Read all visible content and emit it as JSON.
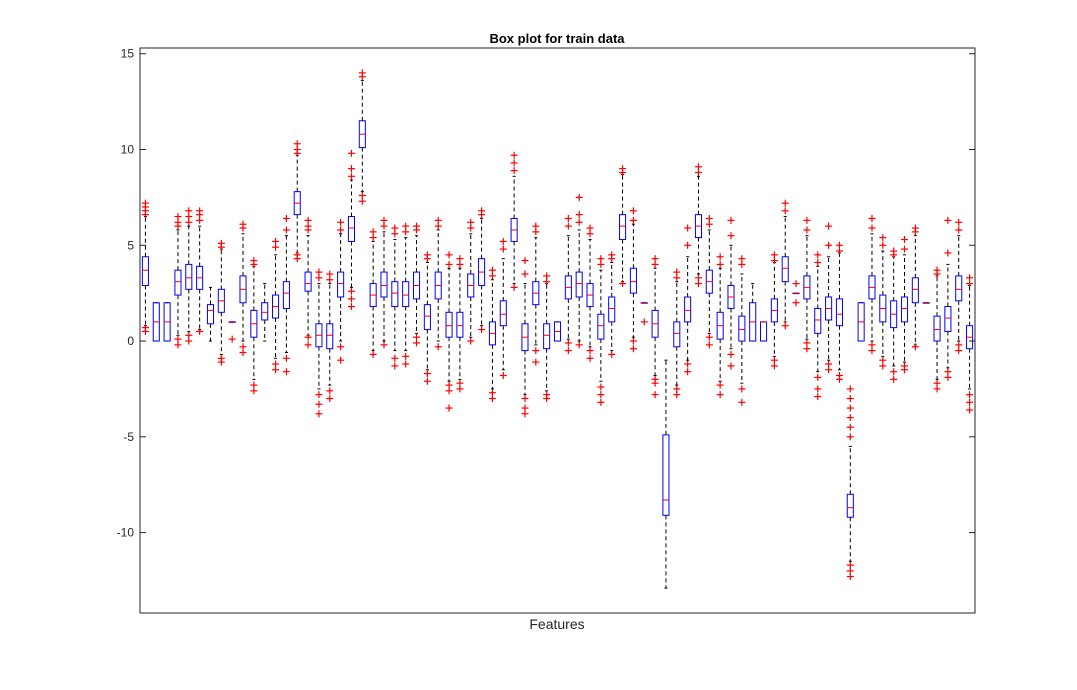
{
  "chart_data": {
    "type": "box",
    "title": "Box plot for train data",
    "xlabel": "Features",
    "ylabel": "",
    "ylim": [
      -14.2,
      15.3
    ],
    "yticks": [
      -10,
      -5,
      0,
      5,
      10,
      15
    ],
    "ytick_labels": [
      "-10",
      "-5",
      "0",
      "5",
      "10",
      "15"
    ],
    "xticks_visible": false,
    "grid": false,
    "colors": {
      "box": "#0000ff",
      "median": "#ff0000",
      "outlier": "#ff0000",
      "whisker": "#000000"
    },
    "boxes": [
      {
        "q1": 2.9,
        "median": 3.7,
        "q3": 4.4,
        "lo": 0.8,
        "hi": 6.5,
        "out": [
          7.2,
          7.0,
          6.8,
          6.6,
          0.7,
          0.5
        ]
      },
      {
        "q1": 0.0,
        "median": 1.0,
        "q3": 2.0,
        "lo": 0.0,
        "hi": 2.0,
        "out": []
      },
      {
        "q1": 0.0,
        "median": 1.0,
        "q3": 2.0,
        "lo": 0.0,
        "hi": 2.0,
        "out": []
      },
      {
        "q1": 2.4,
        "median": 3.1,
        "q3": 3.7,
        "lo": 0.3,
        "hi": 5.8,
        "out": [
          6.5,
          6.2,
          6.0,
          0.1,
          -0.2
        ]
      },
      {
        "q1": 2.7,
        "median": 3.3,
        "q3": 4.0,
        "lo": 0.5,
        "hi": 6.0,
        "out": [
          6.8,
          6.5,
          6.2,
          0.3,
          0.0
        ]
      },
      {
        "q1": 2.7,
        "median": 3.3,
        "q3": 3.9,
        "lo": 0.6,
        "hi": 6.0,
        "out": [
          6.8,
          6.6,
          6.3,
          0.5
        ]
      },
      {
        "q1": 0.9,
        "median": 1.6,
        "q3": 1.9,
        "lo": 0.0,
        "hi": 2.8,
        "out": []
      },
      {
        "q1": 1.5,
        "median": 2.1,
        "q3": 2.7,
        "lo": -0.7,
        "hi": 4.8,
        "out": [
          5.1,
          4.9,
          -0.9,
          -1.1
        ]
      },
      {
        "q1": 1.0,
        "median": 1.0,
        "q3": 1.0,
        "lo": 1.0,
        "hi": 1.0,
        "out": [
          0.1
        ]
      },
      {
        "q1": 2.0,
        "median": 2.7,
        "q3": 3.4,
        "lo": 0.0,
        "hi": 5.6,
        "out": [
          6.1,
          5.9,
          -0.3,
          -0.6
        ]
      },
      {
        "q1": 0.2,
        "median": 0.9,
        "q3": 1.6,
        "lo": -2.0,
        "hi": 3.9,
        "out": [
          4.2,
          4.0,
          -2.3,
          -2.6
        ]
      },
      {
        "q1": 1.1,
        "median": 1.5,
        "q3": 2.0,
        "lo": 0.0,
        "hi": 3.0,
        "out": []
      },
      {
        "q1": 1.2,
        "median": 1.8,
        "q3": 2.4,
        "lo": -0.9,
        "hi": 4.5,
        "out": [
          5.2,
          4.9,
          -1.2,
          -1.5
        ]
      },
      {
        "q1": 1.7,
        "median": 2.5,
        "q3": 3.1,
        "lo": -0.6,
        "hi": 5.5,
        "out": [
          6.4,
          5.8,
          -0.9,
          -1.6
        ]
      },
      {
        "q1": 6.6,
        "median": 7.2,
        "q3": 7.8,
        "lo": 4.6,
        "hi": 9.7,
        "out": [
          10.3,
          10.0,
          9.8,
          4.5,
          4.3
        ]
      },
      {
        "q1": 2.6,
        "median": 3.0,
        "q3": 3.6,
        "lo": 0.3,
        "hi": 5.5,
        "out": [
          6.3,
          6.0,
          5.8,
          0.2,
          -0.2
        ]
      },
      {
        "q1": -0.3,
        "median": 0.3,
        "q3": 0.9,
        "lo": -2.5,
        "hi": 3.0,
        "out": [
          3.6,
          3.3,
          -2.8,
          -3.3,
          -3.8
        ]
      },
      {
        "q1": -0.4,
        "median": 0.3,
        "q3": 0.9,
        "lo": -2.3,
        "hi": 3.0,
        "out": [
          3.5,
          3.2,
          -2.6,
          -3.0
        ]
      },
      {
        "q1": 2.3,
        "median": 3.0,
        "q3": 3.6,
        "lo": 0.0,
        "hi": 5.6,
        "out": [
          6.2,
          5.8,
          -0.3,
          -1.0
        ]
      },
      {
        "q1": 5.2,
        "median": 5.9,
        "q3": 6.5,
        "lo": 2.8,
        "hi": 8.4,
        "out": [
          9.8,
          9.0,
          8.6,
          2.6,
          2.2,
          1.8
        ]
      },
      {
        "q1": 10.1,
        "median": 10.8,
        "q3": 11.5,
        "lo": 7.8,
        "hi": 13.6,
        "out": [
          14.0,
          13.8,
          7.6,
          7.3
        ]
      },
      {
        "q1": 1.8,
        "median": 2.4,
        "q3": 3.0,
        "lo": -0.5,
        "hi": 5.2,
        "out": [
          5.7,
          5.4,
          -0.7
        ]
      },
      {
        "q1": 2.3,
        "median": 2.9,
        "q3": 3.6,
        "lo": 0.0,
        "hi": 5.7,
        "out": [
          6.3,
          6.0,
          -0.2
        ]
      },
      {
        "q1": 1.8,
        "median": 2.5,
        "q3": 3.1,
        "lo": -0.5,
        "hi": 5.3,
        "out": [
          5.9,
          5.6,
          -0.9,
          -1.3
        ]
      },
      {
        "q1": 1.8,
        "median": 2.4,
        "q3": 3.1,
        "lo": -0.5,
        "hi": 5.4,
        "out": [
          6.0,
          5.7,
          -0.8,
          -1.2
        ]
      },
      {
        "q1": 2.2,
        "median": 2.9,
        "q3": 3.6,
        "lo": 0.4,
        "hi": 5.5,
        "out": [
          6.0,
          5.8,
          0.2,
          -0.1
        ]
      },
      {
        "q1": 0.6,
        "median": 1.3,
        "q3": 1.9,
        "lo": -1.5,
        "hi": 4.1,
        "out": [
          4.5,
          4.3,
          -1.7,
          -2.1
        ]
      },
      {
        "q1": 2.2,
        "median": 2.9,
        "q3": 3.6,
        "lo": 0.0,
        "hi": 5.8,
        "out": [
          6.3,
          6.0,
          -0.3
        ]
      },
      {
        "q1": 0.2,
        "median": 0.8,
        "q3": 1.5,
        "lo": -2.1,
        "hi": 3.8,
        "out": [
          4.5,
          4.0,
          -2.3,
          -2.6,
          -3.5
        ]
      },
      {
        "q1": 0.2,
        "median": 0.8,
        "q3": 1.5,
        "lo": -2.0,
        "hi": 3.8,
        "out": [
          4.3,
          4.0,
          -2.2,
          -2.5
        ]
      },
      {
        "q1": 2.3,
        "median": 2.9,
        "q3": 3.5,
        "lo": 0.2,
        "hi": 5.6,
        "out": [
          6.2,
          5.9,
          0.0
        ]
      },
      {
        "q1": 2.9,
        "median": 3.6,
        "q3": 4.3,
        "lo": 0.8,
        "hi": 6.4,
        "out": [
          6.8,
          6.6,
          0.6
        ]
      },
      {
        "q1": -0.2,
        "median": 0.4,
        "q3": 1.0,
        "lo": -2.5,
        "hi": 3.2,
        "out": [
          3.7,
          3.4,
          -2.7,
          -3.0
        ]
      },
      {
        "q1": 0.8,
        "median": 1.4,
        "q3": 2.1,
        "lo": -1.5,
        "hi": 4.3,
        "out": [
          5.2,
          4.8,
          -1.8
        ]
      },
      {
        "q1": 5.2,
        "median": 5.8,
        "q3": 6.4,
        "lo": 3.0,
        "hi": 8.6,
        "out": [
          9.7,
          9.3,
          8.9,
          2.8
        ]
      },
      {
        "q1": -0.5,
        "median": 0.2,
        "q3": 0.9,
        "lo": -2.8,
        "hi": 3.0,
        "out": [
          4.2,
          3.5,
          -3.0,
          -3.5,
          -3.8
        ]
      },
      {
        "q1": 1.9,
        "median": 2.5,
        "q3": 3.1,
        "lo": -0.2,
        "hi": 5.4,
        "out": [
          6.0,
          5.7,
          -0.5,
          -1.1
        ]
      },
      {
        "q1": -0.4,
        "median": 0.3,
        "q3": 0.9,
        "lo": -2.6,
        "hi": 3.0,
        "out": [
          3.4,
          3.1,
          -2.8,
          -3.0
        ]
      },
      {
        "q1": 0.0,
        "median": 0.5,
        "q3": 1.0,
        "lo": 0.0,
        "hi": 1.0,
        "out": []
      },
      {
        "q1": 2.2,
        "median": 2.8,
        "q3": 3.4,
        "lo": 0.1,
        "hi": 5.5,
        "out": [
          6.4,
          6.0,
          -0.1,
          -0.5
        ]
      },
      {
        "q1": 2.3,
        "median": 3.0,
        "q3": 3.6,
        "lo": 0.0,
        "hi": 5.8,
        "out": [
          7.5,
          6.6,
          6.2,
          -0.2
        ]
      },
      {
        "q1": 1.8,
        "median": 2.4,
        "q3": 3.0,
        "lo": -0.3,
        "hi": 5.3,
        "out": [
          5.9,
          5.6,
          -0.5,
          -0.9
        ]
      },
      {
        "q1": 0.1,
        "median": 0.8,
        "q3": 1.4,
        "lo": -2.1,
        "hi": 3.7,
        "out": [
          4.3,
          4.0,
          -2.4,
          -2.8,
          -3.2
        ]
      },
      {
        "q1": 1.0,
        "median": 1.7,
        "q3": 2.3,
        "lo": -0.5,
        "hi": 4.1,
        "out": [
          4.5,
          4.3,
          -0.7
        ]
      },
      {
        "q1": 5.3,
        "median": 6.0,
        "q3": 6.6,
        "lo": 3.1,
        "hi": 8.7,
        "out": [
          9.0,
          8.8,
          3.0
        ]
      },
      {
        "q1": 2.5,
        "median": 3.1,
        "q3": 3.8,
        "lo": 0.2,
        "hi": 6.1,
        "out": [
          6.8,
          6.3,
          0.0,
          -0.4
        ]
      },
      {
        "q1": 2.0,
        "median": 2.0,
        "q3": 2.0,
        "lo": 2.0,
        "hi": 2.0,
        "out": [
          1.0
        ]
      },
      {
        "q1": 0.2,
        "median": 0.9,
        "q3": 1.6,
        "lo": -1.8,
        "hi": 3.8,
        "out": [
          4.3,
          4.0,
          -2.0,
          -2.2,
          -2.8
        ]
      },
      {
        "q1": -9.1,
        "median": -8.3,
        "q3": -4.9,
        "lo": -12.9,
        "hi": -1.0,
        "out": []
      },
      {
        "q1": -0.3,
        "median": 0.4,
        "q3": 1.0,
        "lo": -2.3,
        "hi": 3.1,
        "out": [
          3.6,
          3.3,
          -2.5,
          -2.8
        ]
      },
      {
        "q1": 1.0,
        "median": 1.6,
        "q3": 2.3,
        "lo": -1.0,
        "hi": 4.4,
        "out": [
          5.9,
          5.0,
          -1.2,
          -1.6
        ]
      },
      {
        "q1": 5.4,
        "median": 6.0,
        "q3": 6.6,
        "lo": 3.5,
        "hi": 8.6,
        "out": [
          9.1,
          8.8,
          3.3,
          3.0
        ]
      },
      {
        "q1": 2.5,
        "median": 3.1,
        "q3": 3.7,
        "lo": 0.4,
        "hi": 5.8,
        "out": [
          6.4,
          6.1,
          0.2,
          -0.2
        ]
      },
      {
        "q1": 0.1,
        "median": 0.8,
        "q3": 1.5,
        "lo": -2.1,
        "hi": 3.8,
        "out": [
          4.4,
          4.0,
          -2.3,
          -2.8
        ]
      },
      {
        "q1": 1.7,
        "median": 2.3,
        "q3": 2.9,
        "lo": -0.4,
        "hi": 5.0,
        "out": [
          6.3,
          5.5,
          -0.7,
          -1.3
        ]
      },
      {
        "q1": 0.0,
        "median": 0.6,
        "q3": 1.3,
        "lo": -2.2,
        "hi": 3.5,
        "out": [
          4.3,
          4.0,
          -2.5,
          -3.2
        ]
      },
      {
        "q1": 0.0,
        "median": 1.0,
        "q3": 2.0,
        "lo": 0.0,
        "hi": 3.0,
        "out": []
      },
      {
        "q1": 0.0,
        "median": 1.0,
        "q3": 1.0,
        "lo": 0.0,
        "hi": 1.0,
        "out": []
      },
      {
        "q1": 1.0,
        "median": 1.6,
        "q3": 2.2,
        "lo": -0.8,
        "hi": 4.1,
        "out": [
          4.5,
          4.2,
          -1.0,
          -1.3
        ]
      },
      {
        "q1": 3.1,
        "median": 3.8,
        "q3": 4.4,
        "lo": 1.0,
        "hi": 6.5,
        "out": [
          7.2,
          6.8,
          0.8
        ]
      },
      {
        "q1": 2.5,
        "median": 2.5,
        "q3": 2.5,
        "lo": 2.5,
        "hi": 2.5,
        "out": [
          3.0,
          2.0
        ]
      },
      {
        "q1": 2.2,
        "median": 2.8,
        "q3": 3.4,
        "lo": 0.1,
        "hi": 5.5,
        "out": [
          6.3,
          5.8,
          -0.1,
          -0.4
        ]
      },
      {
        "q1": 0.4,
        "median": 1.1,
        "q3": 1.7,
        "lo": -1.6,
        "hi": 3.9,
        "out": [
          4.5,
          4.1,
          -1.9,
          -2.5,
          -2.9
        ]
      },
      {
        "q1": 1.1,
        "median": 1.7,
        "q3": 2.3,
        "lo": -1.0,
        "hi": 4.4,
        "out": [
          6.0,
          5.0,
          -1.2,
          -1.5
        ]
      },
      {
        "q1": 0.8,
        "median": 1.4,
        "q3": 2.2,
        "lo": -1.5,
        "hi": 4.6,
        "out": [
          5.0,
          4.7,
          -1.8,
          -2.0
        ]
      },
      {
        "q1": -9.2,
        "median": -8.7,
        "q3": -8.0,
        "lo": -11.5,
        "hi": -5.5,
        "out": [
          -5.0,
          -4.5,
          -4.0,
          -3.5,
          -3.0,
          -2.5,
          -11.7,
          -12.0,
          -12.3
        ]
      },
      {
        "q1": 0.0,
        "median": 1.0,
        "q3": 2.0,
        "lo": 0.0,
        "hi": 2.0,
        "out": []
      },
      {
        "q1": 2.2,
        "median": 2.8,
        "q3": 3.4,
        "lo": 0.0,
        "hi": 5.6,
        "out": [
          6.4,
          5.9,
          -0.2,
          -0.5
        ]
      },
      {
        "q1": 1.0,
        "median": 1.7,
        "q3": 2.4,
        "lo": -0.8,
        "hi": 4.7,
        "out": [
          5.4,
          5.0,
          -1.0,
          -1.3
        ]
      },
      {
        "q1": 0.7,
        "median": 1.4,
        "q3": 2.1,
        "lo": -1.3,
        "hi": 4.4,
        "out": [
          4.7,
          4.5,
          -1.6,
          -2.0
        ]
      },
      {
        "q1": 1.0,
        "median": 1.7,
        "q3": 2.3,
        "lo": -1.1,
        "hi": 4.5,
        "out": [
          5.3,
          4.8,
          -1.3,
          -1.5
        ]
      },
      {
        "q1": 2.0,
        "median": 2.7,
        "q3": 3.3,
        "lo": -0.2,
        "hi": 5.5,
        "out": [
          5.9,
          5.7,
          -0.3
        ]
      },
      {
        "q1": 2.0,
        "median": 2.0,
        "q3": 2.0,
        "lo": 2.0,
        "hi": 2.0,
        "out": []
      },
      {
        "q1": 0.0,
        "median": 0.6,
        "q3": 1.3,
        "lo": -2.0,
        "hi": 3.4,
        "out": [
          3.7,
          3.5,
          -2.2,
          -2.5
        ]
      },
      {
        "q1": 0.5,
        "median": 1.2,
        "q3": 1.8,
        "lo": -1.4,
        "hi": 4.0,
        "out": [
          6.3,
          4.6,
          -1.6,
          -1.9
        ]
      },
      {
        "q1": 2.1,
        "median": 2.7,
        "q3": 3.4,
        "lo": 0.0,
        "hi": 5.5,
        "out": [
          6.2,
          5.8,
          -0.2,
          -0.5
        ]
      },
      {
        "q1": -0.4,
        "median": 0.2,
        "q3": 0.8,
        "lo": -2.5,
        "hi": 2.9,
        "out": [
          3.3,
          3.0,
          -2.8,
          -3.2,
          -3.6
        ]
      }
    ]
  }
}
